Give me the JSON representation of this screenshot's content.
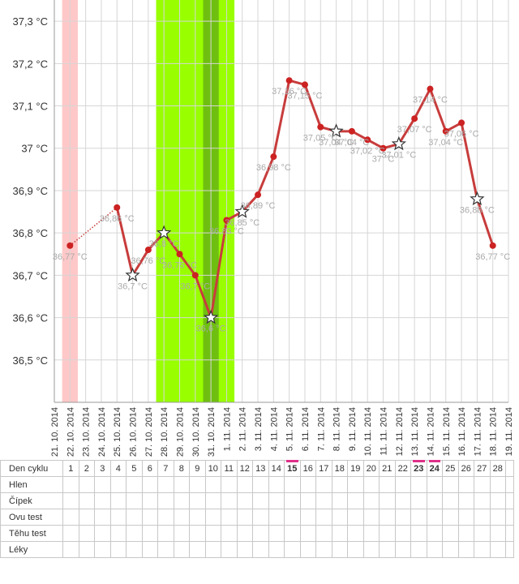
{
  "chart_data": {
    "type": "line",
    "dates": [
      "21. 10. 2014",
      "22. 10. 2014",
      "23. 10. 2014",
      "24. 10. 2014",
      "25. 10. 2014",
      "26. 10. 2014",
      "27. 10. 2014",
      "28. 10. 2014",
      "29. 10. 2014",
      "30. 10. 2014",
      "31. 10. 2014",
      "1. 11. 2014",
      "2. 11. 2014",
      "3. 11. 2014",
      "4. 11. 2014",
      "5. 11. 2014",
      "6. 11. 2014",
      "7. 11. 2014",
      "8. 11. 2014",
      "9. 11. 2014",
      "10. 11. 2014",
      "11. 11. 2014",
      "12. 11. 2014",
      "13. 11. 2014",
      "14. 11. 2014",
      "15. 11. 2014",
      "16. 11. 2014",
      "17. 11. 2014",
      "18. 11. 2014",
      "19. 11. 2014"
    ],
    "ylim": [
      36.4,
      37.35
    ],
    "yticks": [
      36.5,
      36.6,
      36.7,
      36.8,
      36.9,
      37.0,
      37.1,
      37.2,
      37.3
    ],
    "ytick_labels": [
      "36,5 °C",
      "36,6 °C",
      "36,7 °C",
      "36,8 °C",
      "36,9 °C",
      "37 °C",
      "37,1 °C",
      "37,2 °C",
      "37,3 °C"
    ],
    "grid": true,
    "bands": [
      {
        "from_day": 1,
        "to_day": 1,
        "color": "#ffc8c8"
      },
      {
        "from_day": 7,
        "to_day": 11,
        "color": "#99ff00"
      },
      {
        "from_day": 10,
        "to_day": 10,
        "color": "#6fbf10"
      }
    ],
    "points": [
      {
        "day": 1,
        "value": 36.77,
        "label": "36,77 °C",
        "marker": "dot",
        "segment": "dotted"
      },
      {
        "day": 4,
        "value": 36.86,
        "label": "36,86 °C",
        "marker": "dot",
        "segment": "none"
      },
      {
        "day": 5,
        "value": 36.7,
        "label": "36,7 °C",
        "marker": "star",
        "segment": "solid"
      },
      {
        "day": 6,
        "value": 36.76,
        "label": "36,76 °C",
        "marker": "dot",
        "segment": "solid"
      },
      {
        "day": 7,
        "value": 36.8,
        "label": "36,8 °C",
        "marker": "star",
        "segment": "solid"
      },
      {
        "day": 8,
        "value": 36.75,
        "label": "36,75 °C",
        "marker": "dot",
        "segment": "solid"
      },
      {
        "day": 9,
        "value": 36.7,
        "label": "36,7 °C",
        "marker": "dot",
        "segment": "solid"
      },
      {
        "day": 10,
        "value": 36.6,
        "label": "36,6 °C",
        "marker": "star",
        "segment": "solid"
      },
      {
        "day": 11,
        "value": 36.83,
        "label": "36,83 °C",
        "marker": "dot",
        "segment": "solid"
      },
      {
        "day": 12,
        "value": 36.85,
        "label": "36,85 °C",
        "marker": "star",
        "segment": "solid"
      },
      {
        "day": 13,
        "value": 36.89,
        "label": "36,89 °C",
        "marker": "dot",
        "segment": "solid"
      },
      {
        "day": 14,
        "value": 36.98,
        "label": "36,98 °C",
        "marker": "dot",
        "segment": "solid"
      },
      {
        "day": 15,
        "value": 37.16,
        "label": "37,16 °C",
        "marker": "dot",
        "segment": "solid"
      },
      {
        "day": 16,
        "value": 37.15,
        "label": "37,15 °C",
        "marker": "dot",
        "segment": "solid"
      },
      {
        "day": 17,
        "value": 37.05,
        "label": "37,05 °C",
        "marker": "dot",
        "segment": "solid"
      },
      {
        "day": 18,
        "value": 37.04,
        "label": "37,04 °C",
        "marker": "star",
        "segment": "solid"
      },
      {
        "day": 19,
        "value": 37.04,
        "label": "37,04 °C",
        "marker": "dot",
        "segment": "solid"
      },
      {
        "day": 20,
        "value": 37.02,
        "label": "37,02 °C",
        "marker": "dot",
        "segment": "solid"
      },
      {
        "day": 21,
        "value": 37.0,
        "label": "37 °C",
        "marker": "dot",
        "segment": "solid"
      },
      {
        "day": 22,
        "value": 37.01,
        "label": "37,01 °C",
        "marker": "star",
        "segment": "solid"
      },
      {
        "day": 23,
        "value": 37.07,
        "label": "37,07 °C",
        "marker": "dot",
        "segment": "solid"
      },
      {
        "day": 24,
        "value": 37.14,
        "label": "37,14 °C",
        "marker": "dot",
        "segment": "solid"
      },
      {
        "day": 25,
        "value": 37.04,
        "label": "37,04 °C",
        "marker": "dot",
        "segment": "solid"
      },
      {
        "day": 26,
        "value": 37.06,
        "label": "37,06 °C",
        "marker": "dot",
        "segment": "solid"
      },
      {
        "day": 27,
        "value": 36.88,
        "label": "36,88 °C",
        "marker": "star",
        "segment": "solid"
      },
      {
        "day": 28,
        "value": 36.77,
        "label": "36,77 °C",
        "marker": "dot",
        "segment": "solid"
      }
    ],
    "line_color": "#c83c3c",
    "point_color": "#cc2222",
    "label_color": "#aaaaaa"
  },
  "table": {
    "rows": [
      "Den cyklu",
      "Hlen",
      "Čípek",
      "Ovu test",
      "Těhu test",
      "Léky"
    ],
    "days": [
      "1",
      "2",
      "3",
      "4",
      "5",
      "6",
      "7",
      "8",
      "9",
      "10",
      "11",
      "12",
      "13",
      "14",
      "15",
      "16",
      "17",
      "18",
      "19",
      "20",
      "21",
      "22",
      "23",
      "24",
      "25",
      "26",
      "27",
      "28"
    ],
    "marked_days": [
      15,
      23,
      24
    ],
    "marker_color": "#e0308a"
  }
}
